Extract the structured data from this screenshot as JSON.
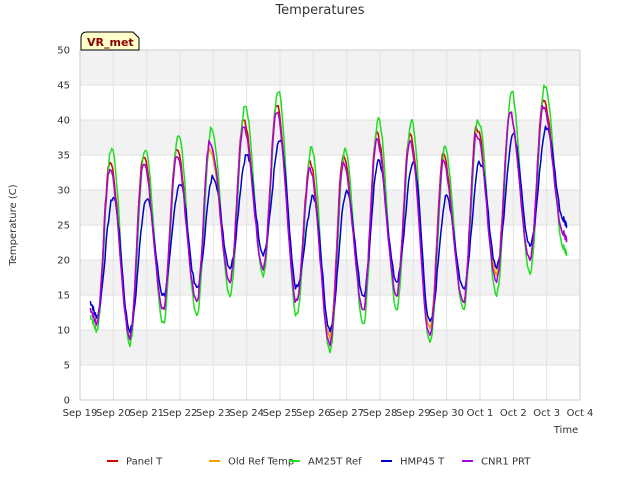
{
  "chart_data": {
    "type": "line",
    "title": "Temperatures",
    "xlabel": "Time",
    "ylabel": "Temperature (C)",
    "badge": "VR_met",
    "ylim": [
      0,
      50
    ],
    "y_ticks": [
      0,
      5,
      10,
      15,
      20,
      25,
      30,
      35,
      40,
      45,
      50
    ],
    "xlim": [
      0,
      15
    ],
    "x_ticks": [
      {
        "value": 0,
        "label": "Sep 19"
      },
      {
        "value": 1,
        "label": "Sep 20"
      },
      {
        "value": 2,
        "label": "Sep 21"
      },
      {
        "value": 3,
        "label": "Sep 22"
      },
      {
        "value": 4,
        "label": "Sep 23"
      },
      {
        "value": 5,
        "label": "Sep 24"
      },
      {
        "value": 6,
        "label": "Sep 25"
      },
      {
        "value": 7,
        "label": "Sep 26"
      },
      {
        "value": 8,
        "label": "Sep 27"
      },
      {
        "value": 9,
        "label": "Sep 28"
      },
      {
        "value": 10,
        "label": "Sep 29"
      },
      {
        "value": 11,
        "label": "Sep 30"
      },
      {
        "value": 12,
        "label": "Oct 1"
      },
      {
        "value": 13,
        "label": "Oct 2"
      },
      {
        "value": 14,
        "label": "Oct 3"
      },
      {
        "value": 15,
        "label": "Oct 4"
      }
    ],
    "grid": true,
    "legend_position": "bottom",
    "series": [
      {
        "name": "Panel T",
        "color": "#cc0000",
        "x": [
          0.3,
          0.5,
          0.9,
          1.5,
          1.9,
          2.5,
          2.9,
          3.5,
          3.9,
          4.5,
          4.9,
          5.5,
          5.9,
          6.5,
          6.9,
          7.5,
          7.9,
          8.5,
          8.9,
          9.5,
          9.9,
          10.5,
          10.9,
          11.5,
          11.9,
          12.5,
          12.9,
          13.5,
          13.9,
          14.5,
          14.6
        ],
        "y": [
          13,
          11,
          34,
          9,
          35,
          13,
          36,
          14,
          37,
          17,
          40,
          19,
          42,
          14,
          34,
          9,
          35,
          13,
          38,
          15,
          38,
          10,
          35,
          14,
          39,
          18,
          41,
          20,
          43,
          24,
          23
        ]
      },
      {
        "name": "Old Ref Temp",
        "color": "#f0a500",
        "x": [
          0.3,
          0.5,
          0.9,
          1.5,
          1.9,
          2.5,
          2.9,
          3.5,
          3.9,
          4.5,
          4.9,
          5.5,
          5.9,
          6.5,
          6.9,
          7.5,
          7.9,
          8.5,
          8.9,
          9.5,
          9.9,
          10.5,
          10.9,
          11.5,
          11.9,
          12.5,
          12.9,
          13.5,
          13.9,
          14.5,
          14.6
        ],
        "y": [
          13,
          11,
          33,
          9,
          34,
          13,
          35,
          14,
          36,
          17,
          39,
          19,
          41,
          14,
          33,
          9,
          34,
          13,
          37,
          15,
          37,
          10,
          34,
          14,
          38,
          18,
          41,
          20,
          42,
          24,
          23
        ]
      },
      {
        "name": "AM25T Ref",
        "color": "#22dd22",
        "x": [
          0.3,
          0.5,
          0.95,
          1.5,
          1.95,
          2.5,
          2.95,
          3.5,
          3.95,
          4.5,
          4.95,
          5.5,
          5.95,
          6.5,
          6.95,
          7.5,
          7.95,
          8.5,
          8.95,
          9.5,
          9.95,
          10.5,
          10.95,
          11.5,
          11.95,
          12.5,
          12.95,
          13.5,
          13.95,
          14.5,
          14.6
        ],
        "y": [
          12,
          10,
          36,
          8,
          36,
          11,
          38,
          12,
          39,
          15,
          42,
          18,
          44,
          12,
          36,
          7,
          36,
          11,
          40,
          13,
          40,
          8,
          36,
          13,
          40,
          15,
          44,
          18,
          45,
          22,
          21
        ]
      },
      {
        "name": "HMP45 T",
        "color": "#0000cc",
        "x": [
          0.3,
          0.5,
          1.0,
          1.5,
          2.0,
          2.5,
          3.0,
          3.5,
          4.0,
          4.5,
          5.0,
          5.5,
          6.0,
          6.5,
          7.0,
          7.5,
          8.0,
          8.5,
          8.95,
          9.5,
          10.0,
          10.5,
          11.0,
          11.5,
          12.0,
          12.5,
          13.0,
          13.5,
          14.0,
          14.5,
          14.6
        ],
        "y": [
          14,
          12,
          29,
          10,
          29,
          15,
          31,
          16,
          32,
          19,
          35,
          21,
          37,
          16,
          29,
          10,
          30,
          15,
          34,
          17,
          34,
          11,
          29,
          16,
          34,
          19,
          38,
          22,
          39,
          26,
          25
        ]
      },
      {
        "name": "CNR1 PRT",
        "color": "#aa00dd",
        "x": [
          0.3,
          0.5,
          0.9,
          1.5,
          1.9,
          2.5,
          2.9,
          3.5,
          3.9,
          4.5,
          4.9,
          5.5,
          5.9,
          6.5,
          6.9,
          7.5,
          7.9,
          8.5,
          8.9,
          9.5,
          9.9,
          10.5,
          10.9,
          11.5,
          11.9,
          12.5,
          12.9,
          13.5,
          13.9,
          14.5,
          14.6
        ],
        "y": [
          13,
          11,
          33,
          9,
          34,
          13,
          35,
          14,
          37,
          17,
          39,
          19,
          41,
          14,
          33,
          8,
          34,
          13,
          37,
          15,
          37,
          9,
          34,
          14,
          38,
          17,
          41,
          20,
          42,
          24,
          23
        ]
      }
    ]
  }
}
